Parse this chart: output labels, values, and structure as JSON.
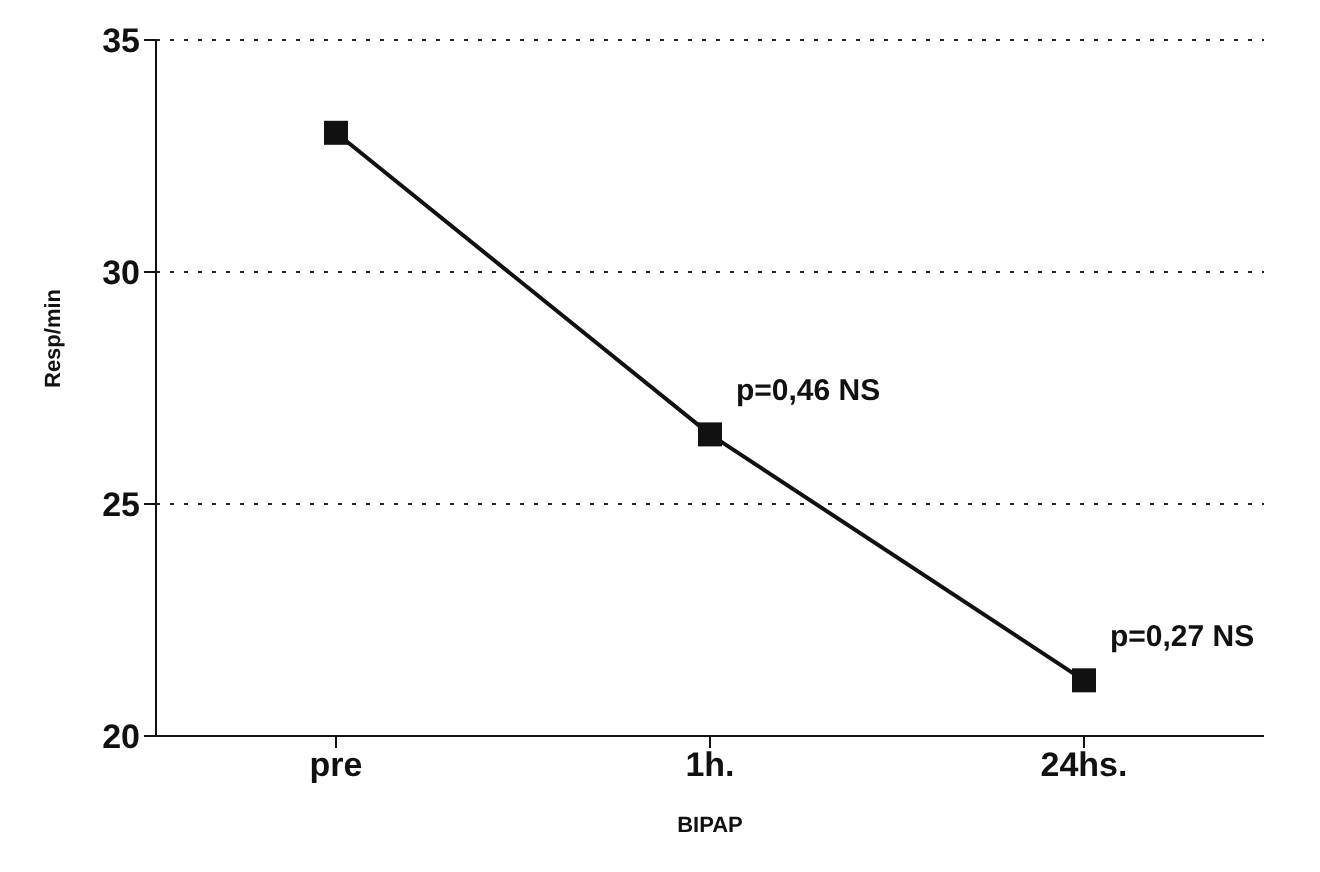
{
  "chart_data": {
    "type": "line",
    "xlabel": "BIPAP",
    "ylabel": "Resp/min",
    "categories": [
      "pre",
      "1h.",
      "24hs."
    ],
    "series": [
      {
        "color": "#111111",
        "values": [
          33,
          26.5,
          21.2
        ]
      }
    ],
    "ylim": [
      20,
      35
    ],
    "yticks": [
      20,
      25,
      30,
      35
    ],
    "grid": "y",
    "marker": "square",
    "line_style": "solid",
    "legend": false,
    "annotations": [
      {
        "text": "p=0,46 NS",
        "x": "1h.",
        "y": 26.5
      },
      {
        "text": "p=0,27 NS",
        "x": "24hs.",
        "y": 21.2
      }
    ]
  }
}
